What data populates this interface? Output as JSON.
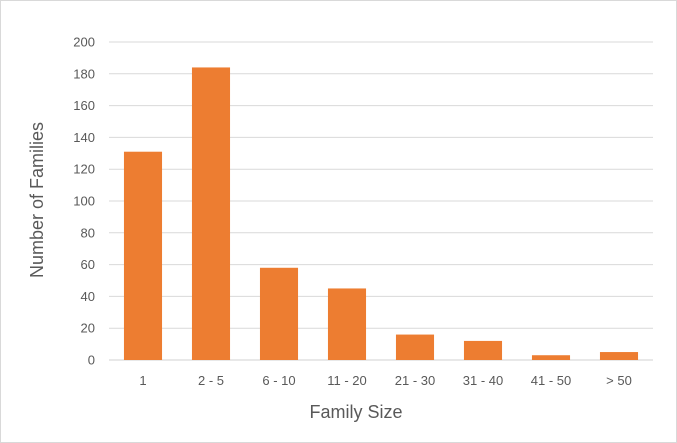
{
  "chart_data": {
    "type": "bar",
    "categories": [
      "1",
      "2 - 5",
      "6 - 10",
      "11 - 20",
      "21 - 30",
      "31 - 40",
      "41 - 50",
      "> 50"
    ],
    "values": [
      131,
      184,
      58,
      45,
      16,
      12,
      3,
      5
    ],
    "xlabel": "Family Size",
    "ylabel": "Number of Families",
    "ylim": [
      0,
      200
    ],
    "yticks": [
      0,
      20,
      40,
      60,
      80,
      100,
      120,
      140,
      160,
      180,
      200
    ],
    "grid": true,
    "legend": "none",
    "bar_color": "#ED7D31",
    "grid_color": "#D9D9D9",
    "text_color": "#595959"
  }
}
